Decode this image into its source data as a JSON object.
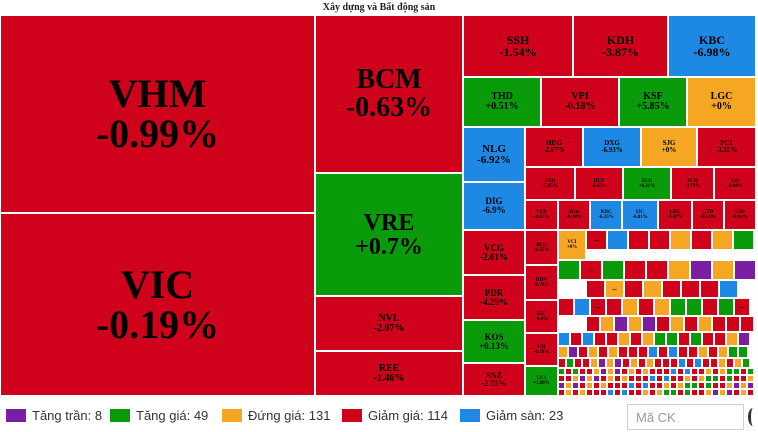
{
  "chart_data": {
    "type": "treemap",
    "title": "Xây dựng và Bất động sản",
    "colors": {
      "ceiling": "#7b1fa2",
      "up": "#0a9b0a",
      "flat": "#f5a623",
      "down": "#d0021b",
      "floor": "#1e88e5"
    },
    "tiles": [
      {
        "ticker": "VHM",
        "change": "-0.99%",
        "status": "down"
      },
      {
        "ticker": "VIC",
        "change": "-0.19%",
        "status": "down"
      },
      {
        "ticker": "BCM",
        "change": "-0.63%",
        "status": "down"
      },
      {
        "ticker": "VRE",
        "change": "+0.7%",
        "status": "up"
      },
      {
        "ticker": "NVL",
        "change": "-2.07%",
        "status": "down"
      },
      {
        "ticker": "REE",
        "change": "-1.46%",
        "status": "down"
      },
      {
        "ticker": "SSH",
        "change": "-1.54%",
        "status": "down"
      },
      {
        "ticker": "KDH",
        "change": "-3.87%",
        "status": "down"
      },
      {
        "ticker": "KBC",
        "change": "-6.98%",
        "status": "floor"
      },
      {
        "ticker": "THD",
        "change": "+0.51%",
        "status": "up"
      },
      {
        "ticker": "VPI",
        "change": "-0.18%",
        "status": "down"
      },
      {
        "ticker": "KSF",
        "change": "+5.85%",
        "status": "up"
      },
      {
        "ticker": "LGC",
        "change": "+0%",
        "status": "flat"
      },
      {
        "ticker": "NLG",
        "change": "-6.92%",
        "status": "floor"
      },
      {
        "ticker": "HDG",
        "change": "-2.67%",
        "status": "down"
      },
      {
        "ticker": "DXG",
        "change": "-6.93%",
        "status": "floor"
      },
      {
        "ticker": "SJG",
        "change": "+0%",
        "status": "flat"
      },
      {
        "ticker": "PC1",
        "change": "-3.35%",
        "status": "down"
      },
      {
        "ticker": "DIG",
        "change": "-6.9%",
        "status": "floor"
      },
      {
        "ticker": "CEO",
        "change": "-7.05%",
        "status": "down"
      },
      {
        "ticker": "HUT",
        "change": "-0.65%",
        "status": "down"
      },
      {
        "ticker": "SCG",
        "change": "+0.31%",
        "status": "up"
      },
      {
        "ticker": "TCH",
        "change": "-3.79%",
        "status": "down"
      },
      {
        "ticker": "SJS",
        "change": "-0.94%",
        "status": "down"
      },
      {
        "ticker": "VCG",
        "change": "-2.01%",
        "status": "down"
      },
      {
        "ticker": "VCR",
        "change": "-0.93%",
        "status": "down"
      },
      {
        "ticker": "AGG",
        "change": "-0.38%",
        "status": "down"
      },
      {
        "ticker": "KDC",
        "change": "-6.35%",
        "status": "floor"
      },
      {
        "ticker": "IJC",
        "change": "-6.81%",
        "status": "floor"
      },
      {
        "ticker": "CRE",
        "change": "-1.07%",
        "status": "down"
      },
      {
        "ticker": "CTD",
        "change": "-0.33%",
        "status": "down"
      },
      {
        "ticker": "HDC",
        "change": "-0.94%",
        "status": "down"
      },
      {
        "ticker": "PDR",
        "change": "-4.29%",
        "status": "down"
      },
      {
        "ticker": "BCG",
        "change": "-0.65%",
        "status": "down"
      },
      {
        "ticker": "VCI",
        "change": "+0%",
        "status": "flat"
      },
      {
        "ticker": "HHV",
        "change": "-0.79%",
        "status": "down"
      },
      {
        "ticker": "KOS",
        "change": "+0.13%",
        "status": "up"
      },
      {
        "ticker": "SZC",
        "change": "-0.4%",
        "status": "down"
      },
      {
        "ticker": "CII",
        "change": "-0.78%",
        "status": "down"
      },
      {
        "ticker": "SNZ",
        "change": "-2.75%",
        "status": "down"
      },
      {
        "ticker": "CC1",
        "change": "+1.88%",
        "status": "up"
      }
    ],
    "legend": [
      {
        "label": "Tăng trần: 8",
        "status": "ceiling"
      },
      {
        "label": "Tăng giá: 49",
        "status": "up"
      },
      {
        "label": "Đứng giá: 131",
        "status": "flat"
      },
      {
        "label": "Giảm giá: 114",
        "status": "down"
      },
      {
        "label": "Giảm sàn: 23",
        "status": "floor"
      }
    ]
  },
  "search": {
    "placeholder": "Mã CK"
  },
  "more_label": "..."
}
